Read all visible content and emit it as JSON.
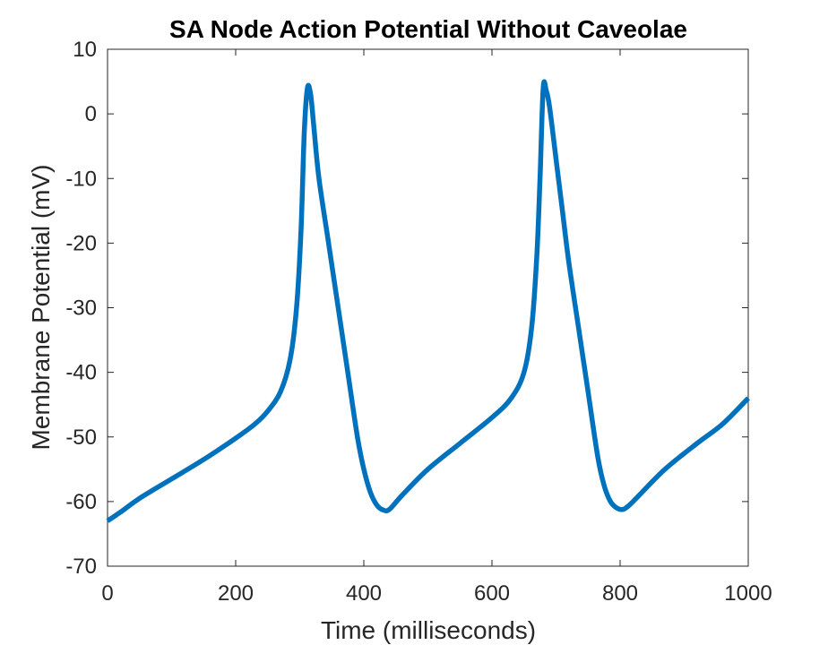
{
  "chart_data": {
    "type": "line",
    "title": "SA Node Action Potential Without Caveolae",
    "xlabel": "Time (milliseconds)",
    "ylabel": "Membrane Potential (mV)",
    "xlim": [
      0,
      1000
    ],
    "ylim": [
      -70,
      10
    ],
    "xticks": [
      0,
      200,
      400,
      600,
      800,
      1000
    ],
    "yticks": [
      -70,
      -60,
      -50,
      -40,
      -30,
      -20,
      -10,
      0,
      10
    ],
    "xtick_labels": [
      "0",
      "200",
      "400",
      "600",
      "800",
      "1000"
    ],
    "ytick_labels": [
      "-70",
      "-60",
      "-50",
      "-40",
      "-30",
      "-20",
      "-10",
      "0",
      "10"
    ],
    "grid": false,
    "legend": "none",
    "series": [
      {
        "color": "#0072BD",
        "x": [
          0,
          25,
          50,
          100,
          150,
          200,
          230,
          250,
          270,
          285,
          295,
          302,
          307,
          312,
          317,
          322,
          330,
          345,
          360,
          375,
          390,
          400,
          410,
          420,
          430,
          440,
          460,
          500,
          550,
          600,
          630,
          650,
          662,
          670,
          675,
          680,
          685,
          690,
          700,
          710,
          720,
          735,
          750,
          765,
          775,
          785,
          795,
          805,
          815,
          830,
          870,
          920,
          960,
          1000
        ],
        "y": [
          -63,
          -61.3,
          -59.5,
          -56.5,
          -53.5,
          -50.2,
          -48,
          -46,
          -43,
          -38,
          -30,
          -18,
          -3,
          4,
          3,
          -2,
          -10,
          -20,
          -30,
          -40,
          -50,
          -55,
          -58.5,
          -60.5,
          -61.3,
          -61.2,
          -59,
          -55,
          -51,
          -47,
          -44,
          -40,
          -33,
          -22,
          -10,
          4,
          3.5,
          1,
          -7,
          -15,
          -23,
          -33,
          -43,
          -53,
          -57.5,
          -60,
          -61,
          -61.2,
          -60.5,
          -59,
          -55,
          -51,
          -48,
          -44
        ]
      }
    ]
  }
}
